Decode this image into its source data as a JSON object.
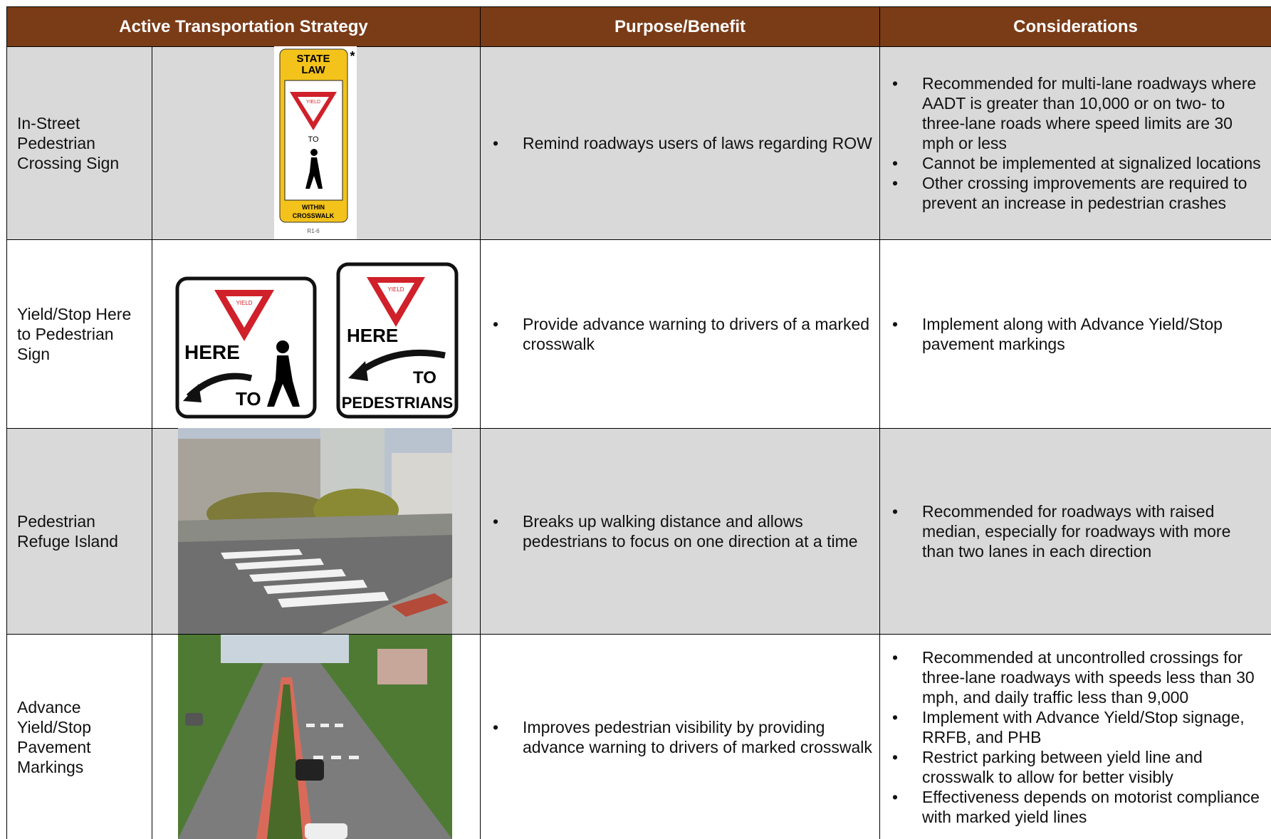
{
  "table": {
    "headers": [
      "Active Transportation Strategy",
      "Purpose/Benefit",
      "Considerations"
    ],
    "rows": [
      {
        "strategy": "In-Street Pedestrian Crossing Sign",
        "purpose": [
          "Remind roadways users of laws regarding ROW"
        ],
        "considerations": [
          "Recommended for multi-lane roadways where AADT is greater than 10,000 or on two- to three-lane roads where speed limits are 30 mph or less",
          "Cannot be implemented at signalized locations",
          "Other crossing improvements are required to prevent an increase in pedestrian crashes"
        ]
      },
      {
        "strategy": "Yield/Stop Here to Pedestrian Sign",
        "purpose": [
          "Provide advance warning to drivers of a marked crosswalk"
        ],
        "considerations": [
          "Implement along with Advance Yield/Stop pavement markings"
        ]
      },
      {
        "strategy": "Pedestrian Refuge Island",
        "purpose": [
          "Breaks up walking distance and allows pedestrians to focus on one direction at a time"
        ],
        "considerations": [
          "Recommended for roadways with raised median, especially for roadways with more than two lanes in each direction"
        ]
      },
      {
        "strategy": "Advance Yield/Stop Pavement Markings",
        "purpose": [
          "Improves pedestrian visibility by providing advance warning to drivers of marked crosswalk"
        ],
        "considerations": [
          "Recommended at uncontrolled crossings for three-lane roadways with speeds less than 30 mph, and daily traffic less than 9,000",
          "Implement with Advance Yield/Stop signage, RRFB, and PHB",
          "Restrict parking between yield line and crosswalk to allow for better visibly",
          "Effectiveness depends on motorist compliance with marked yield lines"
        ]
      }
    ]
  },
  "signs": {
    "r1_6": {
      "top": "STATE",
      "top2": "LAW",
      "star": "*",
      "yield": "YIELD",
      "to": "TO",
      "bottom": "WITHIN",
      "bottom2": "CROSSWALK",
      "code": "R1-6"
    },
    "left": {
      "yield": "YIELD",
      "here": "HERE",
      "to": "TO"
    },
    "right": {
      "yield": "YIELD",
      "here": "HERE",
      "to": "TO",
      "peds": "PEDESTRIANS"
    }
  }
}
